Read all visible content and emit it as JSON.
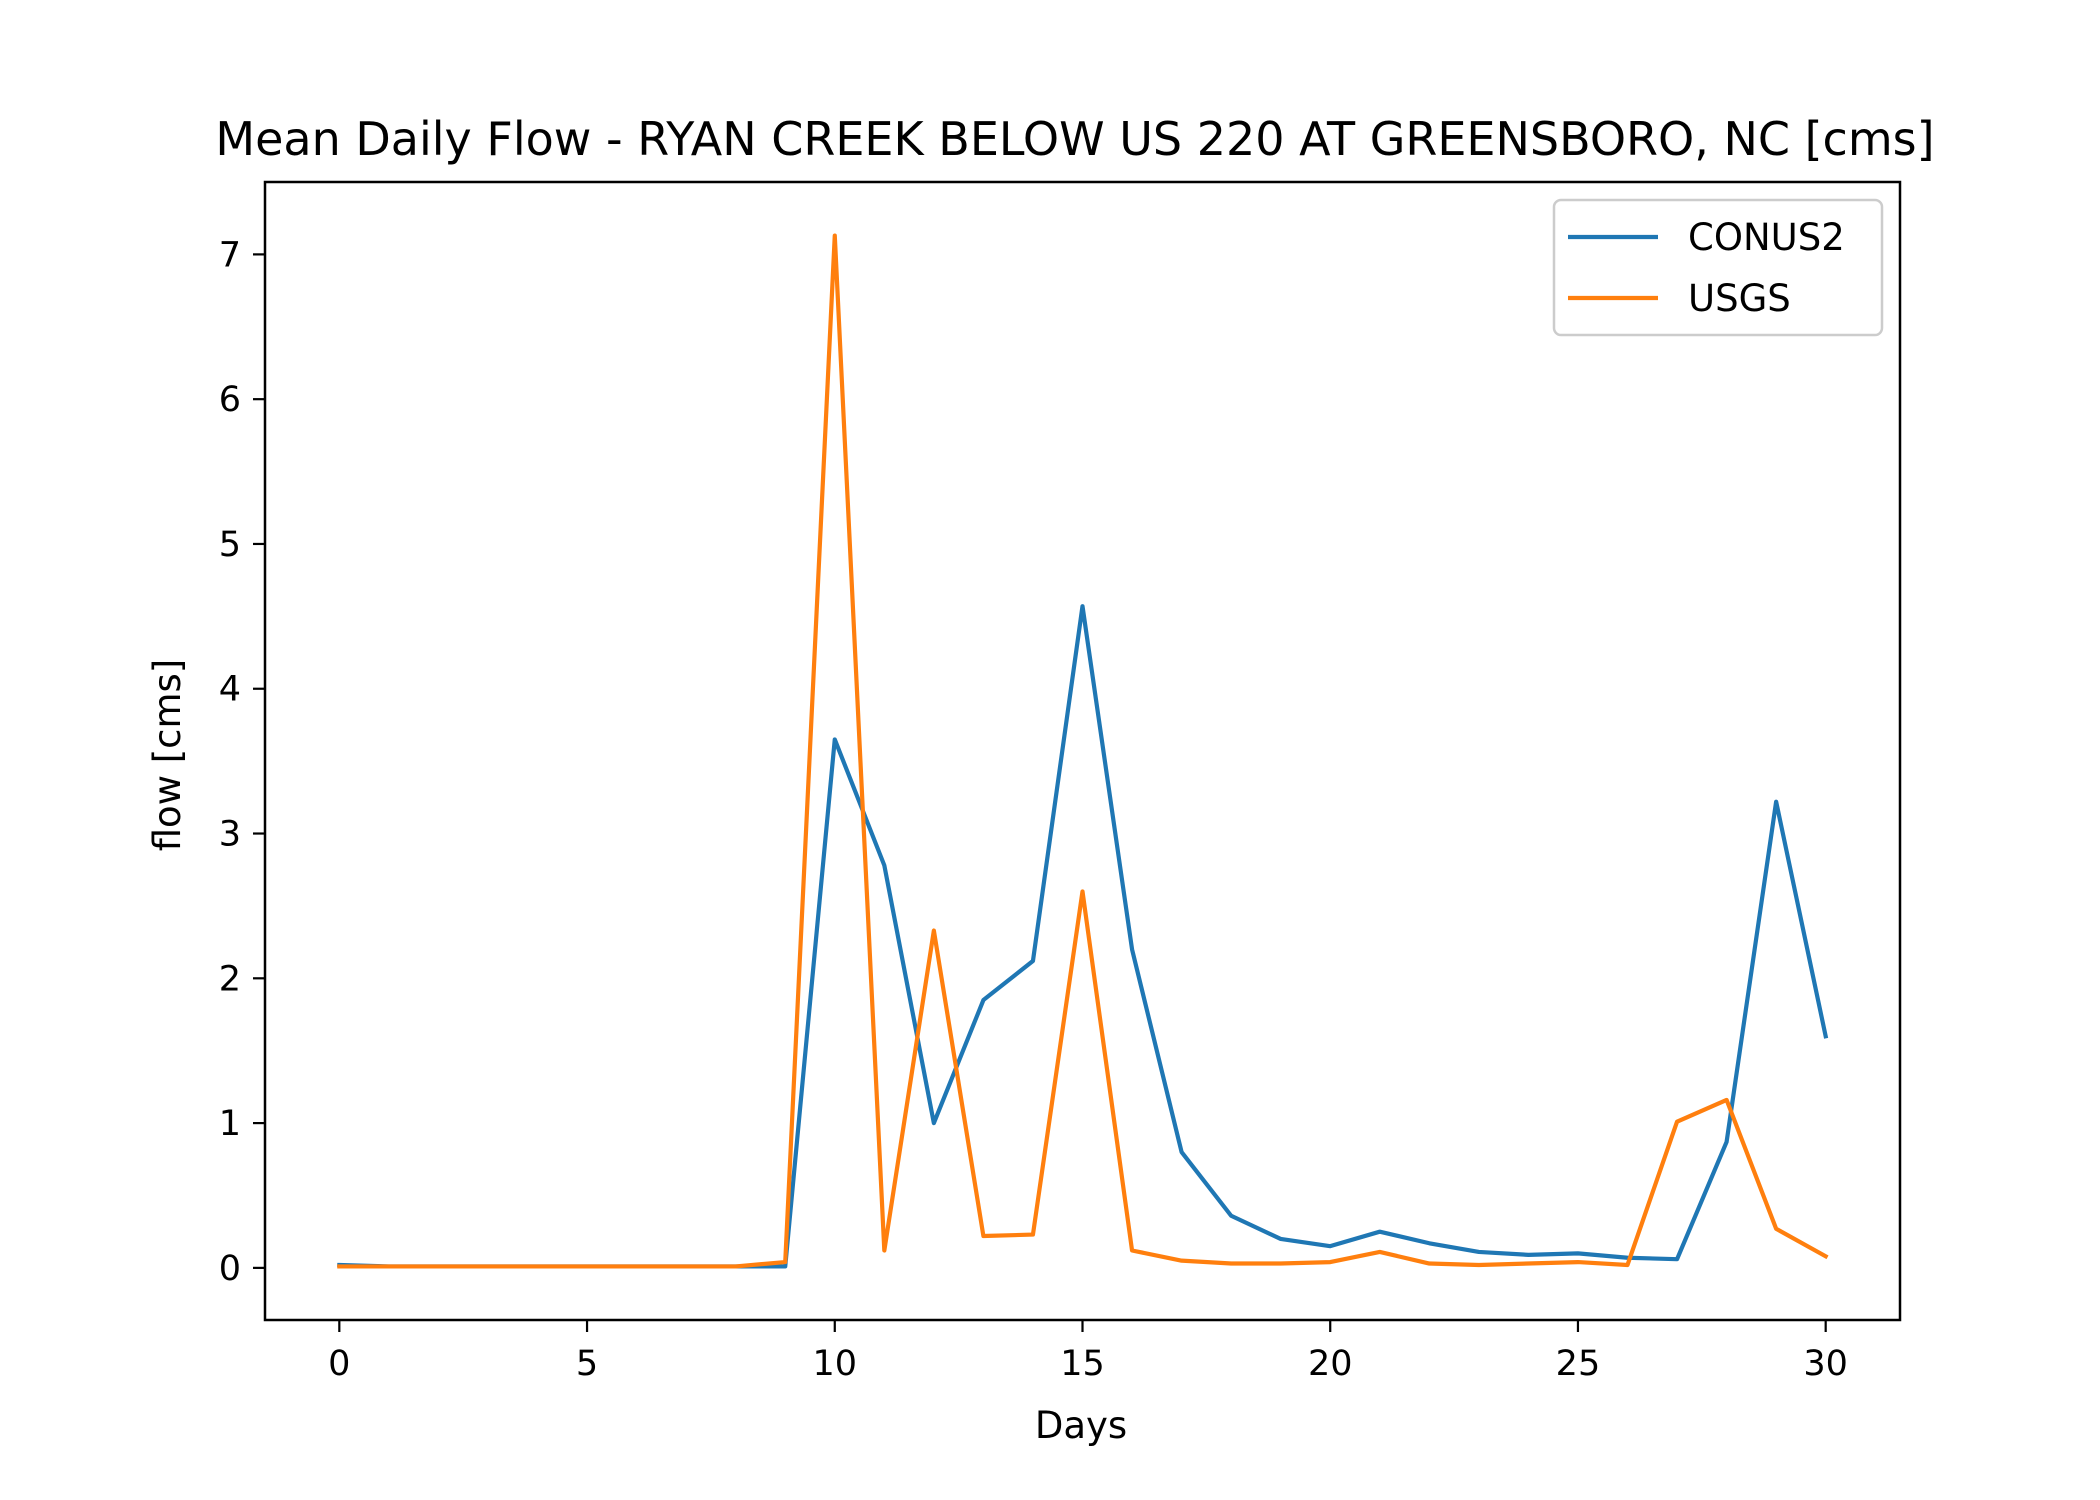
{
  "chart_data": {
    "type": "line",
    "title": "Mean Daily Flow - RYAN CREEK BELOW US 220 AT GREENSBORO, NC [cms]",
    "xlabel": "Days",
    "ylabel": "flow [cms]",
    "xlim": [
      -1.5,
      31.5
    ],
    "ylim": [
      -0.36,
      7.5
    ],
    "xticks": [
      0,
      5,
      10,
      15,
      20,
      25,
      30
    ],
    "yticks": [
      0,
      1,
      2,
      3,
      4,
      5,
      6,
      7
    ],
    "grid": false,
    "legend_position": "top-right",
    "x": [
      0,
      1,
      2,
      3,
      4,
      5,
      6,
      7,
      8,
      9,
      10,
      11,
      12,
      13,
      14,
      15,
      16,
      17,
      18,
      19,
      20,
      21,
      22,
      23,
      24,
      25,
      26,
      27,
      28,
      29,
      30
    ],
    "series": [
      {
        "name": "CONUS2",
        "color": "#1f77b4",
        "values": [
          0.02,
          0.01,
          0.01,
          0.01,
          0.01,
          0.01,
          0.01,
          0.01,
          0.01,
          0.01,
          3.65,
          2.78,
          1.0,
          1.85,
          2.12,
          4.57,
          2.2,
          0.8,
          0.36,
          0.2,
          0.15,
          0.25,
          0.17,
          0.11,
          0.09,
          0.1,
          0.07,
          0.06,
          0.87,
          3.22,
          1.6
        ]
      },
      {
        "name": "USGS",
        "color": "#ff7f0e",
        "values": [
          0.01,
          0.01,
          0.01,
          0.01,
          0.01,
          0.01,
          0.01,
          0.01,
          0.01,
          0.04,
          7.13,
          0.12,
          2.33,
          0.22,
          0.23,
          2.6,
          0.12,
          0.05,
          0.03,
          0.03,
          0.04,
          0.11,
          0.03,
          0.02,
          0.03,
          0.04,
          0.02,
          1.01,
          1.16,
          0.27,
          0.08
        ]
      }
    ]
  }
}
